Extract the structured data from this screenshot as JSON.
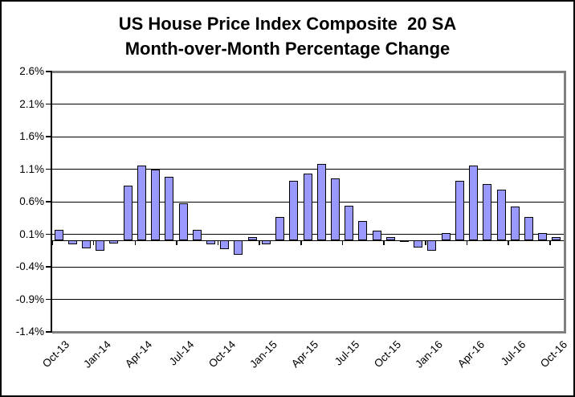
{
  "chart_data": {
    "type": "bar",
    "title": "US House Price Index Composite  20 SA",
    "subtitle": "Month-over-Month Percentage Change",
    "categories": [
      "Oct-13",
      "Nov-13",
      "Dec-13",
      "Jan-14",
      "Feb-14",
      "Mar-14",
      "Apr-14",
      "May-14",
      "Jun-14",
      "Jul-14",
      "Aug-14",
      "Sep-14",
      "Oct-14",
      "Nov-14",
      "Dec-14",
      "Jan-15",
      "Feb-15",
      "Mar-15",
      "Apr-15",
      "May-15",
      "Jun-15",
      "Jul-15",
      "Aug-15",
      "Sep-15",
      "Oct-15",
      "Nov-15",
      "Dec-15",
      "Jan-16",
      "Feb-16",
      "Mar-16",
      "Apr-16",
      "May-16",
      "Jun-16",
      "Jul-16",
      "Aug-16",
      "Sep-16",
      "Oct-16"
    ],
    "values": [
      0.17,
      -0.08,
      -0.14,
      -0.17,
      -0.06,
      0.85,
      1.16,
      1.1,
      0.98,
      0.58,
      0.17,
      -0.07,
      -0.15,
      -0.24,
      0.06,
      -0.07,
      0.37,
      0.92,
      1.03,
      1.18,
      0.96,
      0.54,
      0.3,
      0.16,
      0.06,
      -0.02,
      -0.12,
      -0.18,
      0.12,
      0.92,
      1.16,
      0.87,
      0.78,
      0.53,
      0.36,
      0.12,
      0.06
    ],
    "xlabel": "",
    "ylabel": "",
    "ylim": [
      -1.4,
      2.6
    ],
    "ytick_step": 0.5,
    "ytick_labels": [
      "2.6%",
      "2.1%",
      "1.6%",
      "1.1%",
      "0.6%",
      "0.1%",
      "-0.4%",
      "-0.9%",
      "-1.4%"
    ],
    "xtick_labels": [
      "Oct-13",
      "Jan-14",
      "Apr-14",
      "Jul-14",
      "Oct-14",
      "Jan-15",
      "Apr-15",
      "Jul-15",
      "Oct-15",
      "Jan-16",
      "Apr-16",
      "Jul-16",
      "Oct-16"
    ],
    "xtick_every": 3,
    "grid": true,
    "legend": false,
    "colors": {
      "bar_fill": "#9999FF",
      "bar_border": "#000000",
      "gridline": "#000000",
      "plot_border": "#808080",
      "axis": "#000000",
      "background": "#FFFFFF",
      "text": "#000000"
    }
  }
}
